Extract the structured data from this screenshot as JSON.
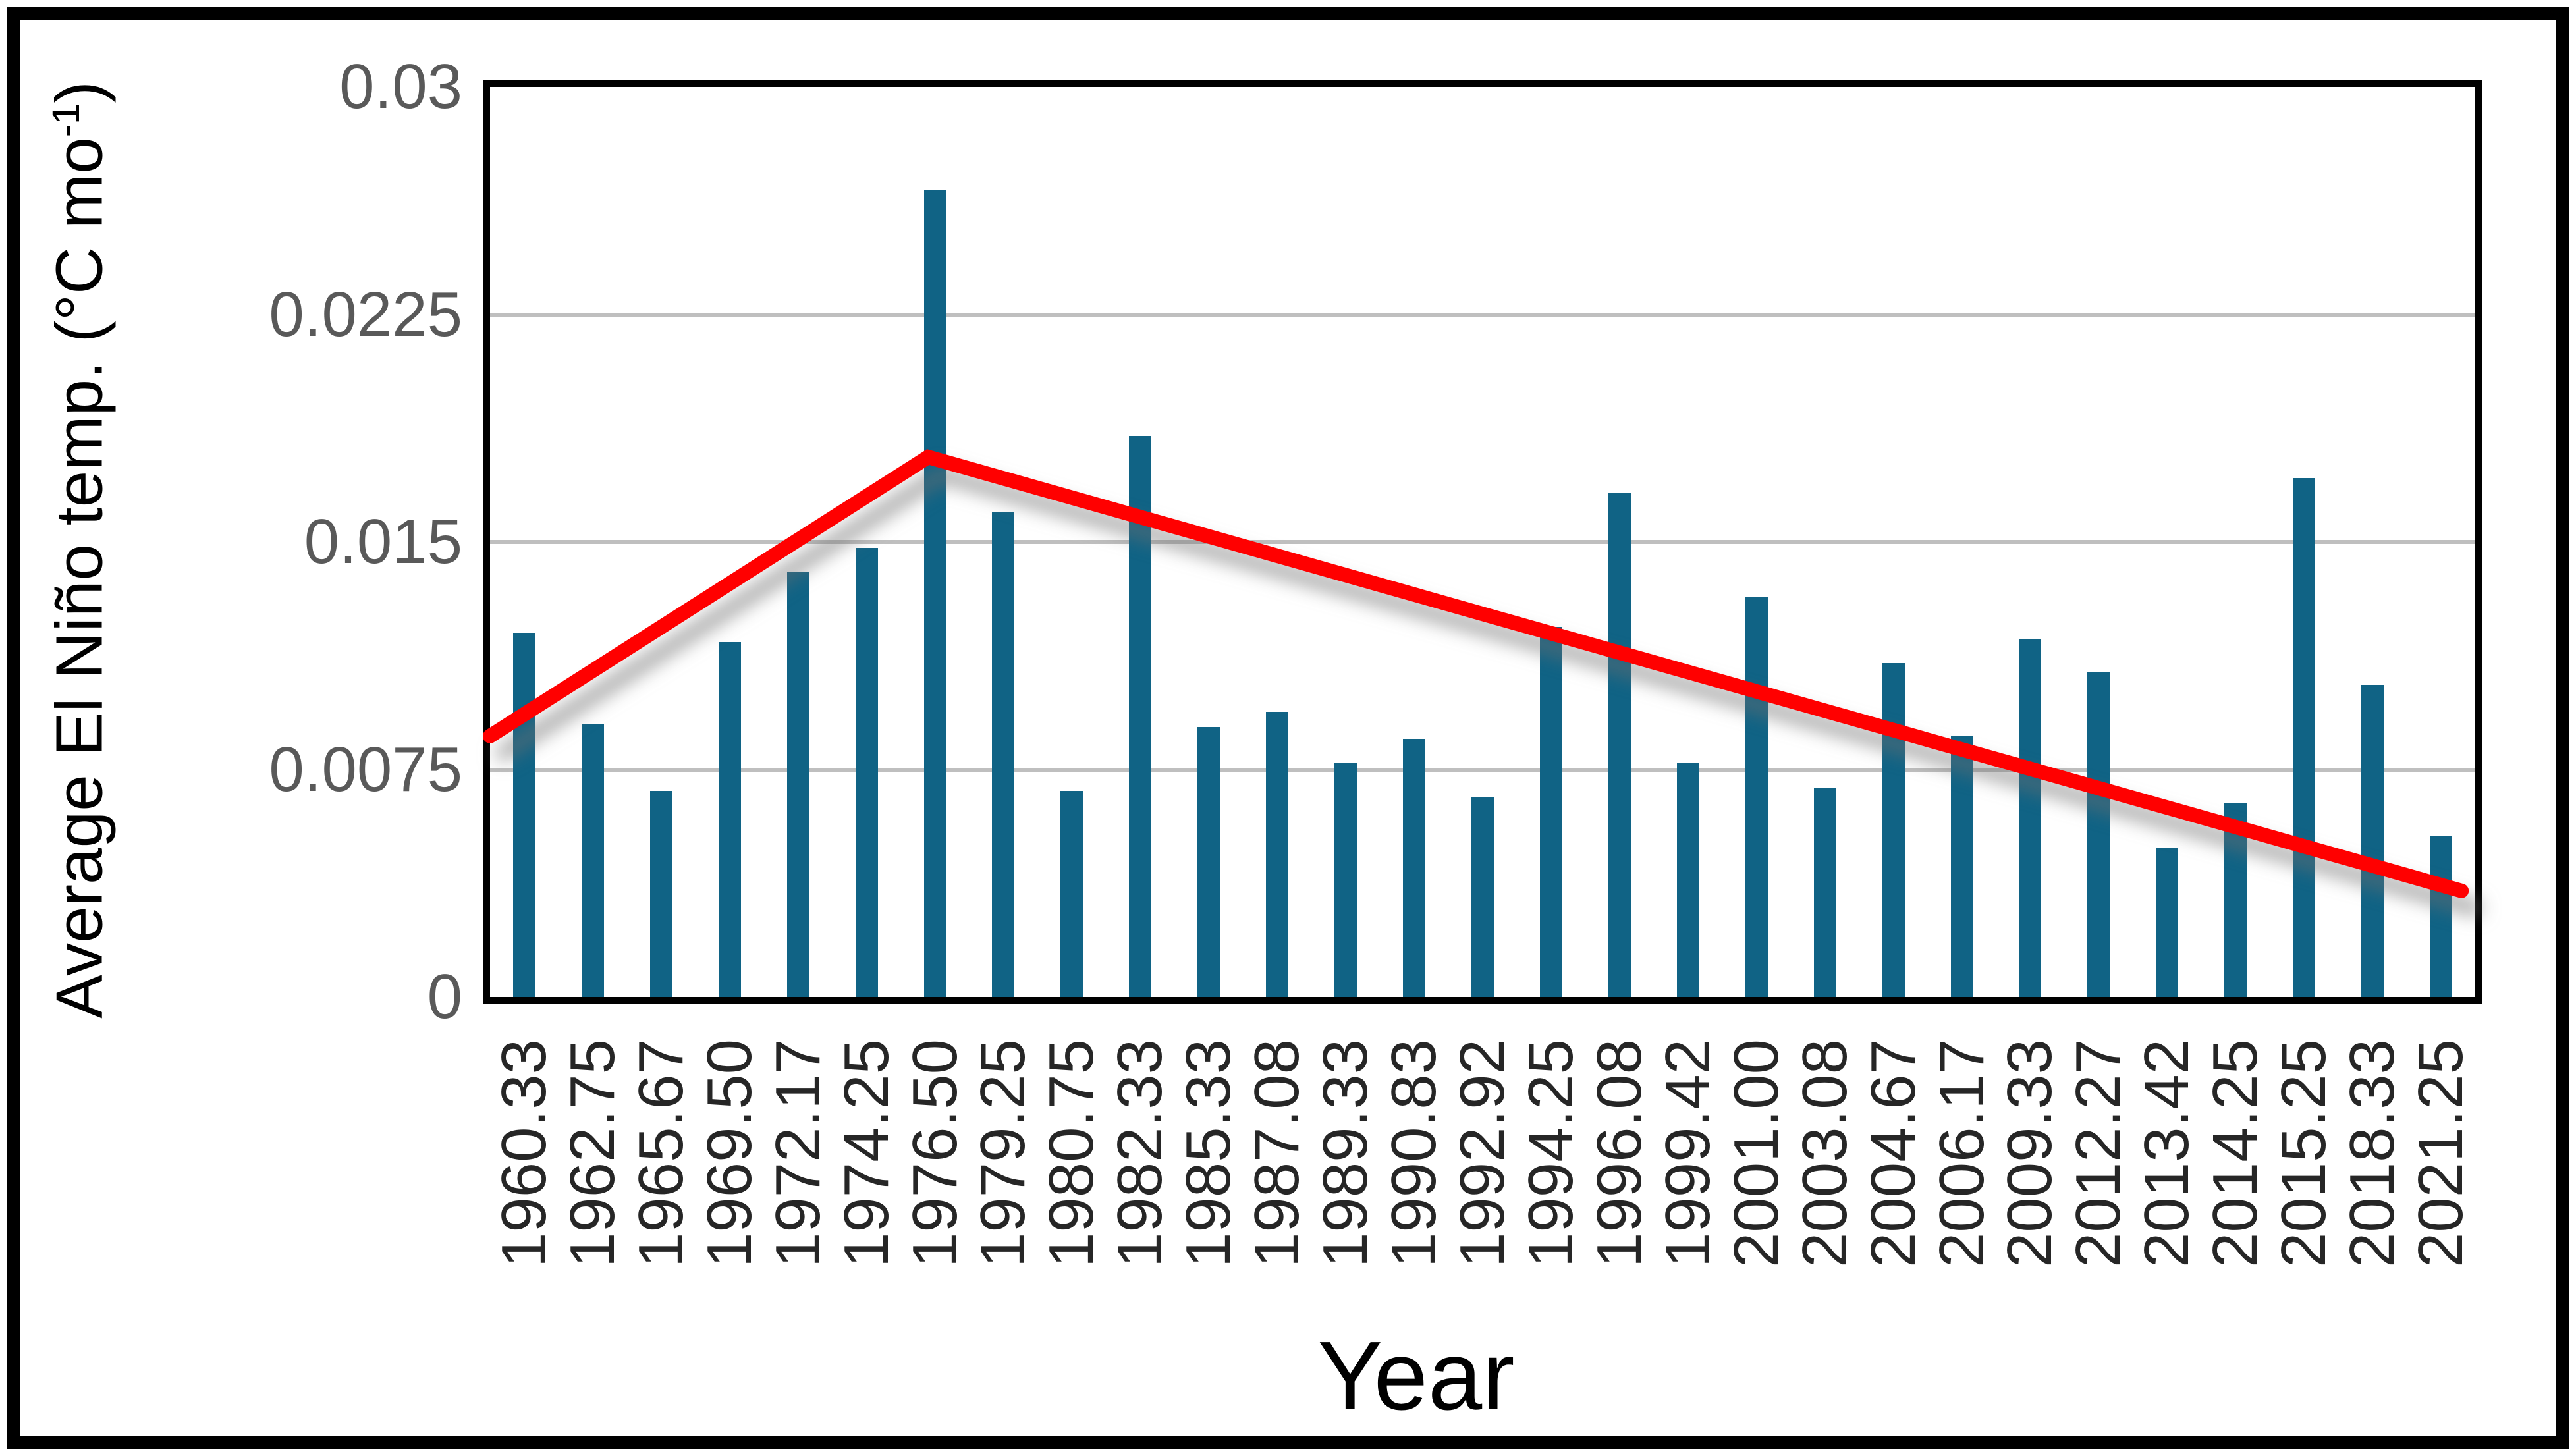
{
  "chart_data": {
    "type": "bar",
    "title": "",
    "xlabel": "Year",
    "ylabel": {
      "prefix": "Average El Niño temp. (°C mo",
      "superscript": "-1",
      "suffix": ")"
    },
    "categories": [
      "1960.33",
      "1962.75",
      "1965.67",
      "1969.50",
      "1972.17",
      "1974.25",
      "1976.50",
      "1979.25",
      "1980.75",
      "1982.33",
      "1985.33",
      "1987.08",
      "1989.33",
      "1990.83",
      "1992.92",
      "1994.25",
      "1996.08",
      "1999.42",
      "2001.00",
      "2003.08",
      "2004.67",
      "2006.17",
      "2009.33",
      "2012.27",
      "2013.42",
      "2014.25",
      "2015.25",
      "2018.33",
      "2021.25"
    ],
    "values": [
      0.012,
      0.009,
      0.0068,
      0.0117,
      0.014,
      0.0148,
      0.0266,
      0.016,
      0.0068,
      0.0185,
      0.0089,
      0.0094,
      0.0077,
      0.0085,
      0.0066,
      0.0122,
      0.0166,
      0.0077,
      0.0132,
      0.0069,
      0.011,
      0.0086,
      0.0118,
      0.0107,
      0.0049,
      0.0064,
      0.0171,
      0.0103,
      0.0053
    ],
    "ylim": [
      0,
      0.03
    ],
    "yticks": [
      {
        "label": "0.03",
        "value": 0.03,
        "gridline": false
      },
      {
        "label": "0.0225",
        "value": 0.0225,
        "gridline": true
      },
      {
        "label": "0.015",
        "value": 0.015,
        "gridline": true
      },
      {
        "label": "0.0075",
        "value": 0.0075,
        "gridline": true
      },
      {
        "label": "0",
        "value": 0,
        "gridline": false
      }
    ],
    "grid": "horizontal",
    "legend": "none",
    "trendline": {
      "type": "piecewise-linear",
      "color": "#FF0000",
      "points": [
        {
          "x_slot": 0,
          "value": 0.0086
        },
        {
          "x_slot": 6.4,
          "value": 0.0178
        },
        {
          "x_slot": 28.8,
          "value": 0.0035
        }
      ]
    },
    "colors": {
      "bar": "#106385",
      "trend": "#FF0000",
      "gridline": "#BFBFBF",
      "axis_border": "#000000",
      "y_tick_text": "#595959",
      "x_tick_text": "#262626",
      "title_text": "#000000"
    }
  }
}
